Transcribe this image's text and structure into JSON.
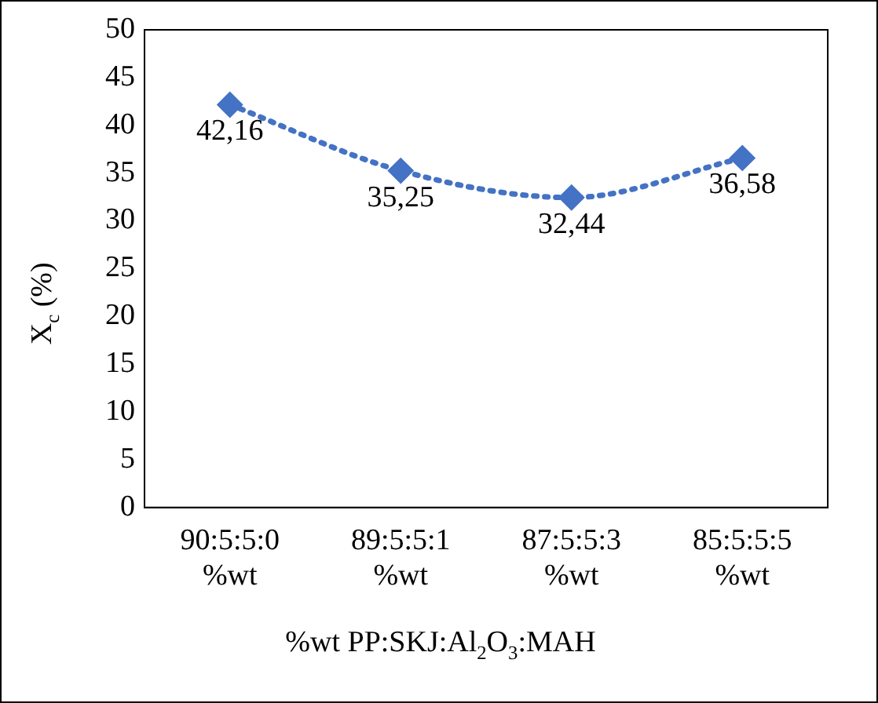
{
  "chart_data": {
    "type": "line",
    "xlabel": "%wt PP:SKJ:Al$_{2}$O$_{3}$:MAH",
    "ylabel": "X$_{c}$ (%)",
    "categories": [
      "90:5:5:0 %wt",
      "89:5:5:1 %wt",
      "87:5:5:3 %wt",
      "85:5:5:5 %wt"
    ],
    "series": [
      {
        "color": "#4472c4",
        "values": [
          42.16,
          35.25,
          32.44,
          36.58
        ],
        "value_labels": [
          "42,16",
          "35,25",
          "32,44",
          "36,58"
        ]
      }
    ],
    "ylim": [
      0,
      50
    ],
    "yticks": [
      0,
      5,
      10,
      15,
      20,
      25,
      30,
      35,
      40,
      45,
      50
    ],
    "grid": false,
    "legend": false,
    "marker": "diamond",
    "line_style": "dotted"
  }
}
